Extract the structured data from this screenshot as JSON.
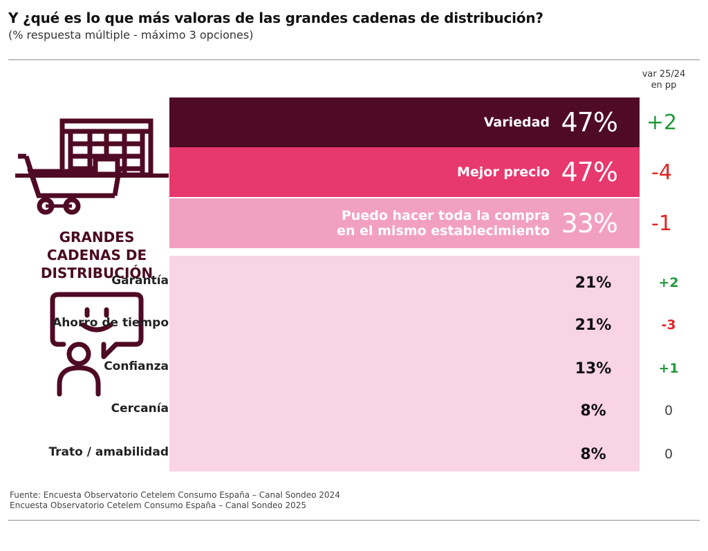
{
  "header": {
    "title": "Y ¿qué es lo que más valoras de las grandes cadenas de distribución?",
    "subtitle": "(% respuesta múltiple - máximo 3 opciones)",
    "var_label_1": "var 25/24",
    "var_label_2": "en pp"
  },
  "category": {
    "line1": "GRANDES",
    "line2": "CADENAS DE",
    "line3": "DISTRIBUCIÓN",
    "icons": [
      "shopping-cart-icon",
      "shelves-icon",
      "happy-customer-chat-icon"
    ]
  },
  "colors": {
    "dark": "#4f0a24",
    "magenta": "#e8396f",
    "pink": "#f2a0c2",
    "light_pink": "#f9d4e3",
    "positive": "#22993b",
    "negative": "#e02424",
    "neutral": "#444444"
  },
  "chart_data": {
    "type": "table",
    "categories": [
      "Variedad",
      "Mejor precio",
      "Puedo hacer toda la compra en el mismo establecimiento",
      "Garantía",
      "Ahorro de tiempo",
      "Confianza",
      "Cercanía",
      "Trato / amabilidad"
    ],
    "values": [
      47,
      47,
      33,
      21,
      21,
      13,
      8,
      8
    ],
    "values_label": [
      "47%",
      "47%",
      "33%",
      "21%",
      "21%",
      "13%",
      "8%",
      "8%"
    ],
    "var_pp": [
      2,
      -4,
      -1,
      2,
      -3,
      1,
      0,
      0
    ],
    "var_label": [
      "+2",
      "-4",
      "-1",
      "+2",
      "-3",
      "+1",
      "0",
      "0"
    ],
    "top_rows": [
      {
        "label_line1": "Variedad",
        "label_line2": "",
        "value": "47%",
        "var": "+2"
      },
      {
        "label_line1": "Mejor precio",
        "label_line2": "",
        "value": "47%",
        "var": "-4"
      },
      {
        "label_line1": "Puedo hacer toda la compra",
        "label_line2": "en el mismo establecimiento",
        "value": "33%",
        "var": "-1"
      }
    ],
    "other_rows": [
      {
        "label": "Garantía",
        "value": "21%",
        "var": "+2"
      },
      {
        "label": "Ahorro de tiempo",
        "value": "21%",
        "var": "-3"
      },
      {
        "label": "Confianza",
        "value": "13%",
        "var": "+1"
      },
      {
        "label": "Cercanía",
        "value": "8%",
        "var": "0"
      },
      {
        "label": "Trato / amabilidad",
        "value": "8%",
        "var": "0"
      }
    ]
  },
  "footer": {
    "line1": "Fuente: Encuesta Observatorio Cetelem Consumo España – Canal Sondeo 2024",
    "line2": "Encuesta Observatorio Cetelem Consumo España – Canal Sondeo 2025"
  }
}
